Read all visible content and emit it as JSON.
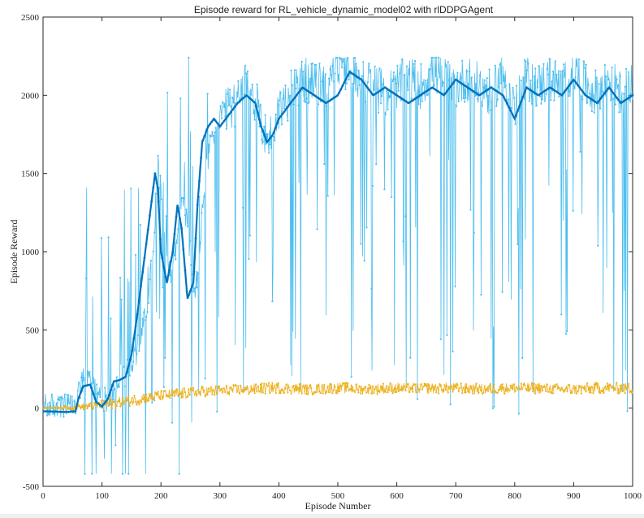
{
  "chart_data": {
    "type": "line",
    "title": "Episode reward for RL_vehicle_dynamic_model02 with rlDDPGAgent",
    "xlabel": "Episode Number",
    "ylabel": "Episode Reward",
    "xlim": [
      0,
      1000
    ],
    "ylim": [
      -500,
      2500
    ],
    "xticks": [
      0,
      100,
      200,
      300,
      400,
      500,
      600,
      700,
      800,
      900,
      1000
    ],
    "yticks": [
      -500,
      0,
      500,
      1000,
      1500,
      2000,
      2500
    ],
    "grid": false,
    "legend": "none",
    "series": [
      {
        "role": "episode-reward",
        "color": "#4dbeee",
        "style": "line-with-dots",
        "noise": 330,
        "x": [
          0,
          40,
          55,
          60,
          68,
          80,
          95,
          110,
          120,
          130,
          145,
          160,
          175,
          185,
          195,
          205,
          215,
          225,
          235,
          245,
          255,
          262,
          272,
          285,
          300,
          315,
          330,
          345,
          355,
          370,
          380,
          390,
          400,
          420,
          440,
          460,
          480,
          500,
          520,
          540,
          560,
          580,
          600,
          620,
          640,
          660,
          680,
          700,
          720,
          740,
          760,
          780,
          800,
          820,
          840,
          860,
          880,
          900,
          920,
          940,
          960,
          980,
          1000
        ],
        "y": [
          -20,
          -25,
          -20,
          60,
          140,
          150,
          40,
          10,
          60,
          170,
          200,
          340,
          600,
          900,
          1500,
          1200,
          800,
          1000,
          1300,
          1150,
          700,
          800,
          1300,
          1700,
          1800,
          1850,
          1900,
          2000,
          1950,
          1800,
          1650,
          1700,
          1850,
          1950,
          2050,
          2000,
          2000,
          2150,
          2100,
          2050,
          2000,
          1950,
          2000,
          2050,
          2000,
          2100,
          2050,
          2000,
          2050,
          2000,
          1950,
          2100,
          1850,
          2050,
          2000,
          2050,
          2000,
          2100,
          2000,
          1950,
          2050,
          1950,
          2000
        ]
      },
      {
        "role": "average-reward",
        "color": "#0072bd",
        "style": "thick-line-with-dots",
        "noise": 0,
        "x": [
          0,
          40,
          55,
          60,
          68,
          80,
          90,
          100,
          110,
          120,
          130,
          140,
          150,
          160,
          170,
          180,
          190,
          195,
          200,
          210,
          220,
          228,
          235,
          245,
          255,
          262,
          270,
          280,
          290,
          300,
          310,
          320,
          330,
          345,
          360,
          370,
          380,
          390,
          400,
          420,
          440,
          460,
          480,
          500,
          520,
          540,
          560,
          580,
          600,
          620,
          640,
          660,
          680,
          700,
          720,
          740,
          760,
          780,
          800,
          820,
          840,
          860,
          880,
          900,
          920,
          940,
          960,
          980,
          1000
        ],
        "y": [
          -20,
          -25,
          -20,
          60,
          140,
          150,
          40,
          10,
          60,
          170,
          180,
          200,
          340,
          600,
          900,
          1200,
          1500,
          1400,
          1000,
          800,
          1000,
          1300,
          1150,
          700,
          800,
          1300,
          1700,
          1800,
          1850,
          1800,
          1850,
          1900,
          1950,
          2000,
          1950,
          1800,
          1700,
          1750,
          1850,
          1950,
          2050,
          2000,
          1950,
          2000,
          2150,
          2100,
          2000,
          2050,
          2000,
          1950,
          2000,
          2050,
          2000,
          2100,
          2050,
          2000,
          2050,
          2000,
          1850,
          2050,
          2000,
          2050,
          2000,
          2100,
          2000,
          1950,
          2050,
          1950,
          2000
        ]
      },
      {
        "role": "episode-q0",
        "color": "#edb120",
        "style": "line-with-dots",
        "noise": 70,
        "x": [
          0,
          50,
          100,
          150,
          200,
          250,
          300,
          350,
          400,
          450,
          500,
          550,
          600,
          650,
          700,
          750,
          800,
          850,
          900,
          950,
          1000
        ],
        "y": [
          0,
          5,
          20,
          50,
          80,
          100,
          110,
          120,
          130,
          120,
          130,
          120,
          130,
          125,
          130,
          120,
          130,
          125,
          120,
          130,
          125
        ]
      }
    ]
  }
}
